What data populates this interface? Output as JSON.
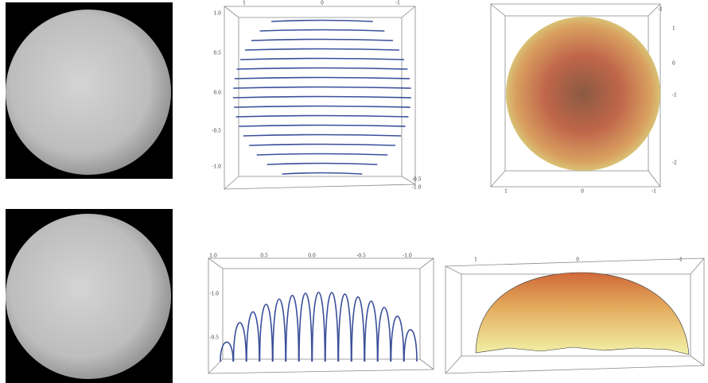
{
  "panel_b": {
    "top_ticks": [
      "1",
      "0",
      "-1"
    ],
    "left_ticks": [
      "1.0",
      "0.5",
      "0.0",
      "-0.5",
      "-1.0"
    ],
    "corner_ticks": [
      "-0.5",
      "-1.0"
    ]
  },
  "panel_c": {
    "top_ticks": [
      "-1"
    ],
    "right_ticks": [
      "1",
      "0",
      "-1",
      "-2"
    ],
    "bottom_ticks": [
      "1",
      "0",
      "-1"
    ]
  },
  "panel_e": {
    "top_ticks": [
      "1.0",
      "0.5",
      "0.0",
      "-0.5",
      "-1.0"
    ],
    "left_ticks": [
      "-1.0",
      "-0.5"
    ]
  },
  "panel_f": {
    "top_ticks": [
      "1",
      "0",
      "-1"
    ]
  }
}
